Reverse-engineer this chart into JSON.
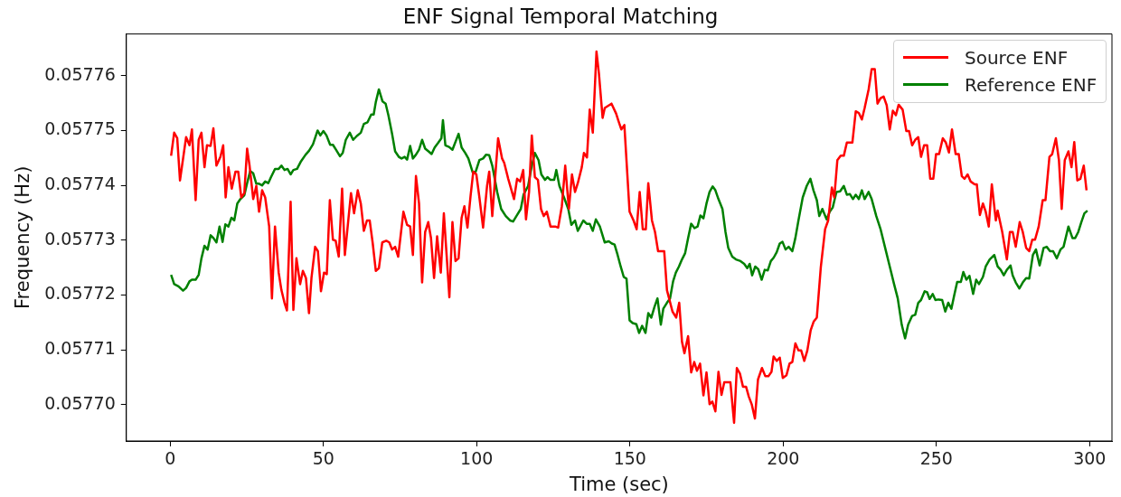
{
  "chart_data": {
    "type": "line",
    "title": "ENF Signal Temporal Matching",
    "xlabel": "Time (sec)",
    "ylabel": "Frequency (Hz)",
    "xlim": [
      -14.3,
      307.3
    ],
    "xticks": [
      0,
      50,
      100,
      150,
      200,
      250,
      300
    ],
    "ylim": [
      0.0576934,
      0.0577676
    ],
    "yticks": [
      {
        "value": 0.0577,
        "label": "0.05770"
      },
      0.05771,
      0.05772,
      0.05773,
      0.05774,
      0.05775,
      0.05776
    ],
    "legend": "top right",
    "marker": "none",
    "line_style": "solid",
    "grid": false,
    "series": [
      {
        "name": "Source ENF",
        "color": "#ff0000",
        "x": [
          0.3,
          1.3,
          2.3,
          3.2,
          5.2,
          6.3,
          7.1,
          8.3,
          9.3,
          10.2,
          11.2,
          12,
          13.2,
          14.1,
          15.1,
          16.4,
          17.3,
          18.1,
          19,
          20.1,
          21.3,
          22.2,
          23.2,
          24.2,
          25.1,
          25.9,
          27.1,
          28.1,
          29,
          30,
          31,
          32.3,
          33.2,
          34.2,
          35.4,
          36.3,
          37.3,
          38.1,
          39.3,
          40.2,
          41.2,
          42.4,
          43.3,
          44.3,
          45.3,
          46.1,
          47.3,
          48.2,
          49.2,
          50.2,
          51.1,
          52.1,
          53.1,
          54,
          55,
          56.1,
          57,
          59,
          60,
          61.2,
          62.2,
          63.2,
          64.2,
          65.1,
          66.1,
          67.1,
          68.1,
          69.2,
          70.5,
          71.5,
          72.4,
          73.4,
          74.4,
          76.1,
          77.3,
          78.3,
          79.2,
          80.2,
          81.2,
          82.2,
          83.2,
          84.2,
          85.1,
          86.1,
          87.1,
          88.3,
          89.3,
          90.2,
          91.1,
          92.1,
          93.1,
          94.1,
          95.1,
          96,
          97,
          98,
          98.9,
          99.9,
          100.9,
          102.1,
          103.4,
          104.1,
          105.1,
          107,
          108.3,
          109,
          110.3,
          112.2,
          113.2,
          114.2,
          115.2,
          116.1,
          117.1,
          118,
          119,
          120,
          121,
          121.9,
          122.9,
          124.1,
          125.6,
          126.6,
          127.8,
          128.9,
          130.1,
          131.1,
          132.1,
          133,
          134.3,
          135,
          136,
          136.9,
          137.9,
          139.1,
          139.9,
          141.1,
          141.8,
          144,
          145.5,
          146.3,
          147.2,
          148.2,
          149.9,
          151.2,
          152.2,
          153.2,
          154.2,
          155.2,
          156,
          157.2,
          158.2,
          159.2,
          161.2,
          162.1,
          163.9,
          165.1,
          166.1,
          167,
          167.8,
          169,
          170,
          171,
          171.9,
          172.9,
          174,
          175,
          176,
          176.9,
          177.9,
          178.9,
          179.9,
          180.8,
          181.8,
          182.8,
          184,
          184.9,
          185.9,
          186.9,
          187.9,
          188.8,
          189.8,
          190.8,
          191.8,
          193.1,
          194.2,
          195.2,
          196.2,
          196.9,
          197.9,
          198.9,
          199.9,
          201.1,
          202.1,
          203,
          204,
          205,
          205.9,
          206.9,
          207.9,
          209,
          210,
          211,
          212.3,
          213.7,
          214.7,
          215.9,
          216.7,
          217.7,
          218.8,
          219.8,
          220.8,
          222.6,
          223.7,
          224.7,
          225.7,
          226.6,
          227.9,
          228.9,
          229.9,
          230.8,
          231.8,
          232.8,
          233.8,
          234.8,
          235.8,
          236.8,
          237.7,
          239,
          240.2,
          241.1,
          242.1,
          243.1,
          244.1,
          245,
          246,
          247,
          248,
          249,
          249.9,
          250.9,
          252.1,
          253.1,
          254.1,
          255.1,
          256.3,
          257.3,
          258.3,
          259.2,
          260.2,
          261.2,
          262.5,
          263.2,
          264.2,
          265.2,
          266.1,
          267.1,
          268.1,
          269.4,
          270,
          271.5,
          273,
          274,
          274.9,
          275.9,
          277.2,
          278.2,
          279.3,
          280.3,
          281.3,
          282.2,
          283.4,
          284.7,
          285.6,
          286.9,
          287.8,
          289,
          290,
          290.9,
          291.9,
          293.1,
          294.1,
          295,
          296,
          297,
          298.1,
          299
        ],
        "values": [
          0.0577454,
          0.0577496,
          0.0577486,
          0.0577409,
          0.0577488,
          0.0577473,
          0.0577502,
          0.0577373,
          0.0577483,
          0.0577496,
          0.0577433,
          0.0577473,
          0.0577472,
          0.0577504,
          0.0577436,
          0.0577452,
          0.0577473,
          0.0577378,
          0.0577433,
          0.0577394,
          0.0577425,
          0.0577425,
          0.0577378,
          0.0577386,
          0.0577467,
          0.0577436,
          0.0577375,
          0.0577399,
          0.0577352,
          0.0577391,
          0.0577378,
          0.0577325,
          0.0577194,
          0.0577325,
          0.0577241,
          0.0577209,
          0.0577186,
          0.0577172,
          0.057737,
          0.0577173,
          0.0577267,
          0.057722,
          0.0577244,
          0.0577231,
          0.0577167,
          0.0577231,
          0.0577288,
          0.057728,
          0.0577207,
          0.0577241,
          0.0577238,
          0.0577373,
          0.0577301,
          0.0577299,
          0.057727,
          0.0577394,
          0.0577273,
          0.0577386,
          0.0577349,
          0.0577391,
          0.0577367,
          0.0577317,
          0.0577336,
          0.0577336,
          0.0577294,
          0.0577244,
          0.0577249,
          0.0577296,
          0.0577299,
          0.0577296,
          0.0577283,
          0.0577288,
          0.057727,
          0.0577352,
          0.0577328,
          0.0577325,
          0.0577273,
          0.0577417,
          0.0577367,
          0.0577223,
          0.0577315,
          0.0577333,
          0.0577304,
          0.0577231,
          0.0577307,
          0.0577241,
          0.0577349,
          0.0577273,
          0.0577196,
          0.0577333,
          0.0577262,
          0.0577267,
          0.0577341,
          0.0577362,
          0.0577323,
          0.057738,
          0.0577425,
          0.057742,
          0.0577378,
          0.0577323,
          0.0577399,
          0.0577425,
          0.0577344,
          0.0577486,
          0.0577449,
          0.0577441,
          0.0577412,
          0.0577375,
          0.0577412,
          0.0577407,
          0.0577428,
          0.0577338,
          0.0577388,
          0.0577491,
          0.0577415,
          0.057741,
          0.0577357,
          0.0577344,
          0.0577352,
          0.0577325,
          0.0577325,
          0.0577323,
          0.0577362,
          0.0577436,
          0.0577357,
          0.057742,
          0.0577388,
          0.0577404,
          0.0577433,
          0.0577459,
          0.0577451,
          0.0577538,
          0.0577496,
          0.0577644,
          0.0577604,
          0.0577523,
          0.0577541,
          0.0577549,
          0.0577531,
          0.0577517,
          0.0577502,
          0.057751,
          0.0577352,
          0.0577336,
          0.057732,
          0.0577388,
          0.057732,
          0.057732,
          0.0577404,
          0.0577336,
          0.0577315,
          0.057728,
          0.057728,
          0.0577209,
          0.057717,
          0.0577159,
          0.0577186,
          0.0577115,
          0.0577094,
          0.0577125,
          0.0577059,
          0.0577078,
          0.0577062,
          0.0577075,
          0.0577017,
          0.0577059,
          0.0577001,
          0.0577006,
          0.0576988,
          0.057706,
          0.0577018,
          0.0577041,
          0.0577041,
          0.0577041,
          0.0576967,
          0.0577067,
          0.0577057,
          0.0577033,
          0.0577033,
          0.0577015,
          0.0577,
          0.0576975,
          0.0577046,
          0.0577067,
          0.0577052,
          0.0577052,
          0.057706,
          0.0577088,
          0.057708,
          0.0577086,
          0.0577049,
          0.0577054,
          0.0577075,
          0.0577078,
          0.0577112,
          0.0577099,
          0.0577099,
          0.057708,
          0.0577099,
          0.0577136,
          0.0577152,
          0.0577159,
          0.0577251,
          0.057732,
          0.0577336,
          0.0577396,
          0.0577378,
          0.0577446,
          0.0577454,
          0.0577454,
          0.0577478,
          0.0577478,
          0.0577535,
          0.0577532,
          0.057752,
          0.0577541,
          0.0577575,
          0.0577612,
          0.0577612,
          0.0577549,
          0.0577559,
          0.0577562,
          0.0577546,
          0.0577502,
          0.0577536,
          0.0577528,
          0.0577547,
          0.0577538,
          0.0577499,
          0.0577499,
          0.0577473,
          0.0577483,
          0.0577488,
          0.0577452,
          0.0577473,
          0.0577473,
          0.0577412,
          0.0577412,
          0.0577457,
          0.0577457,
          0.0577486,
          0.0577478,
          0.057746,
          0.0577502,
          0.0577457,
          0.0577457,
          0.0577417,
          0.0577412,
          0.057742,
          0.0577407,
          0.0577402,
          0.0577402,
          0.0577346,
          0.0577367,
          0.0577352,
          0.0577325,
          0.0577402,
          0.0577336,
          0.0577354,
          0.0577315,
          0.0577265,
          0.0577315,
          0.0577315,
          0.0577288,
          0.0577333,
          0.0577315,
          0.0577286,
          0.057728,
          0.0577301,
          0.0577301,
          0.0577325,
          0.0577373,
          0.0577373,
          0.0577452,
          0.0577457,
          0.0577486,
          0.0577446,
          0.0577357,
          0.0577446,
          0.0577462,
          0.0577433,
          0.0577479,
          0.0577409,
          0.0577412,
          0.0577436,
          0.0577391
        ]
      },
      {
        "name": "Reference ENF",
        "color": "#008000",
        "x": [
          0.3,
          1.3,
          2.7,
          4.2,
          5.2,
          6.3,
          7.1,
          8.3,
          9.3,
          10.2,
          11.2,
          12.2,
          13.2,
          14.1,
          15.1,
          16.1,
          17.1,
          18,
          19,
          20,
          20.9,
          21.9,
          22.9,
          24.2,
          25.1,
          26.1,
          27.1,
          28.1,
          29,
          30,
          31,
          32,
          32.9,
          34.2,
          35.4,
          36.3,
          37.3,
          38.3,
          39.3,
          40.2,
          41.4,
          42.7,
          44.2,
          45.3,
          46.6,
          48.1,
          49,
          50,
          51,
          52.2,
          53.1,
          54.1,
          55.4,
          56.3,
          57.3,
          58.6,
          59.7,
          60.9,
          62.2,
          63.2,
          64.4,
          65.6,
          66.4,
          67.1,
          68.1,
          69.3,
          70.3,
          71.2,
          72.4,
          73.4,
          74.6,
          75.5,
          76.5,
          77.3,
          78.3,
          79.2,
          80.2,
          81.2,
          82.2,
          83.2,
          84.3,
          85.3,
          86.3,
          87.5,
          88.5,
          89,
          89.8,
          91,
          92.1,
          94.1,
          95.1,
          96.3,
          97.3,
          98.7,
          99.7,
          100.9,
          102.1,
          103.1,
          104.1,
          105.1,
          106.7,
          108,
          109.5,
          110.9,
          111.9,
          113.2,
          114.4,
          115.3,
          116.8,
          118,
          119,
          120.2,
          121.1,
          122.3,
          123.1,
          124.1,
          125.3,
          126,
          127,
          128.5,
          129.9,
          130.9,
          132.1,
          133,
          134.8,
          135.9,
          136.9,
          137.9,
          138.9,
          140.2,
          141.8,
          143.1,
          144.1,
          145,
          146,
          147,
          148,
          148.9,
          149.9,
          150.9,
          152.1,
          153,
          154,
          155.1,
          156,
          157,
          158,
          159,
          160.1,
          160.9,
          162.1,
          163.1,
          164.1,
          165,
          166,
          167,
          168,
          169,
          170,
          171.1,
          172.1,
          173,
          174,
          175,
          176,
          177,
          177.9,
          178.9,
          180.2,
          181.2,
          182.1,
          183.4,
          184.6,
          186.1,
          187.3,
          188.3,
          189.1,
          189.9,
          190.9,
          191.9,
          193,
          194,
          195,
          196,
          196.9,
          197.9,
          198.9,
          199.8,
          200.8,
          201.8,
          203,
          204,
          205,
          206.4,
          207.7,
          208.9,
          209.9,
          211,
          211.8,
          212.8,
          214.2,
          215.2,
          216.2,
          217.4,
          218.6,
          219.8,
          220.8,
          221.8,
          222.8,
          223.7,
          224.7,
          225.7,
          226.6,
          227.9,
          228.9,
          230.4,
          231.8,
          233.3,
          234.8,
          236.2,
          237.4,
          238.7,
          239.8,
          240.8,
          242.1,
          243.1,
          244.1,
          245,
          246.2,
          247,
          247.8,
          248.8,
          249.7,
          250.7,
          251.9,
          252.9,
          253.9,
          254.9,
          255.8,
          256.8,
          258,
          258.8,
          259.8,
          260.8,
          262,
          263,
          263.9,
          265.2,
          266.1,
          267.4,
          268.9,
          270,
          271,
          272,
          273,
          274.2,
          274.9,
          275.9,
          277.1,
          278.2,
          279.3,
          280.3,
          281.5,
          282.5,
          283.7,
          285,
          286,
          287.1,
          288.1,
          289.3,
          290.5,
          291.5,
          293.1,
          294.4,
          295.3,
          296.3,
          297.3,
          298.3,
          299.3
        ],
        "values": [
          0.0577237,
          0.057722,
          0.0577216,
          0.0577208,
          0.0577213,
          0.0577225,
          0.0577228,
          0.0577228,
          0.0577237,
          0.0577267,
          0.057729,
          0.0577283,
          0.0577309,
          0.0577304,
          0.0577296,
          0.0577325,
          0.0577297,
          0.0577329,
          0.0577325,
          0.0577341,
          0.0577336,
          0.0577367,
          0.0577375,
          0.0577382,
          0.0577404,
          0.0577426,
          0.0577422,
          0.0577403,
          0.0577403,
          0.05774,
          0.0577407,
          0.0577404,
          0.0577415,
          0.057743,
          0.057743,
          0.0577436,
          0.0577428,
          0.057743,
          0.057742,
          0.0577428,
          0.057743,
          0.0577444,
          0.0577456,
          0.0577463,
          0.0577475,
          0.05775,
          0.0577491,
          0.0577499,
          0.0577491,
          0.0577474,
          0.0577474,
          0.0577465,
          0.0577453,
          0.0577459,
          0.0577483,
          0.0577496,
          0.0577483,
          0.057749,
          0.0577496,
          0.0577512,
          0.0577515,
          0.0577529,
          0.0577529,
          0.0577552,
          0.0577575,
          0.0577553,
          0.0577549,
          0.0577528,
          0.0577494,
          0.0577462,
          0.0577452,
          0.0577449,
          0.0577452,
          0.0577447,
          0.0577472,
          0.0577449,
          0.0577456,
          0.0577465,
          0.0577483,
          0.0577467,
          0.0577462,
          0.0577457,
          0.0577469,
          0.0577478,
          0.0577486,
          0.0577519,
          0.0577473,
          0.057747,
          0.0577465,
          0.0577494,
          0.0577469,
          0.0577459,
          0.0577449,
          0.0577424,
          0.0577425,
          0.0577446,
          0.0577449,
          0.0577456,
          0.0577455,
          0.0577436,
          0.0577388,
          0.0577357,
          0.0577344,
          0.0577336,
          0.0577334,
          0.0577346,
          0.0577357,
          0.0577383,
          0.0577399,
          0.0577436,
          0.0577459,
          0.0577446,
          0.057742,
          0.057741,
          0.0577415,
          0.057741,
          0.057741,
          0.0577428,
          0.0577399,
          0.0577378,
          0.0577357,
          0.0577328,
          0.0577336,
          0.0577317,
          0.0577336,
          0.057733,
          0.057733,
          0.0577317,
          0.0577338,
          0.0577325,
          0.0577296,
          0.0577298,
          0.0577294,
          0.0577292,
          0.0577273,
          0.0577252,
          0.0577233,
          0.057723,
          0.0577154,
          0.0577149,
          0.0577147,
          0.0577131,
          0.0577144,
          0.0577131,
          0.0577167,
          0.0577159,
          0.0577178,
          0.0577194,
          0.0577146,
          0.0577175,
          0.0577186,
          0.0577194,
          0.0577225,
          0.0577241,
          0.0577252,
          0.0577265,
          0.0577276,
          0.0577304,
          0.057733,
          0.0577322,
          0.0577325,
          0.0577345,
          0.057734,
          0.0577367,
          0.0577388,
          0.0577398,
          0.0577391,
          0.0577375,
          0.0577357,
          0.0577315,
          0.0577286,
          0.057727,
          0.0577265,
          0.0577262,
          0.0577257,
          0.0577249,
          0.0577257,
          0.0577236,
          0.0577252,
          0.0577247,
          0.0577228,
          0.0577246,
          0.0577245,
          0.0577262,
          0.0577268,
          0.0577278,
          0.0577294,
          0.0577297,
          0.0577283,
          0.0577288,
          0.057728,
          0.0577304,
          0.0577336,
          0.0577378,
          0.0577399,
          0.0577412,
          0.0577391,
          0.0577373,
          0.0577344,
          0.0577357,
          0.0577338,
          0.0577352,
          0.057736,
          0.0577388,
          0.0577389,
          0.0577399,
          0.0577383,
          0.0577384,
          0.0577375,
          0.0577383,
          0.0577375,
          0.0577391,
          0.0577375,
          0.0577388,
          0.0577375,
          0.0577344,
          0.057732,
          0.0577286,
          0.0577252,
          0.057722,
          0.0577194,
          0.0577146,
          0.0577121,
          0.0577146,
          0.0577162,
          0.0577164,
          0.0577186,
          0.0577191,
          0.0577207,
          0.0577205,
          0.0577193,
          0.0577202,
          0.0577191,
          0.0577192,
          0.0577191,
          0.057717,
          0.0577186,
          0.0577175,
          0.0577199,
          0.0577224,
          0.0577224,
          0.0577242,
          0.0577228,
          0.0577235,
          0.0577202,
          0.0577228,
          0.057722,
          0.0577233,
          0.0577252,
          0.0577265,
          0.0577273,
          0.0577252,
          0.0577246,
          0.0577236,
          0.0577246,
          0.0577254,
          0.0577236,
          0.0577223,
          0.0577212,
          0.0577223,
          0.0577231,
          0.057723,
          0.0577273,
          0.0577283,
          0.0577254,
          0.0577286,
          0.0577288,
          0.057728,
          0.057728,
          0.0577267,
          0.0577283,
          0.0577288,
          0.0577325,
          0.0577304,
          0.0577304,
          0.0577315,
          0.0577333,
          0.0577349,
          0.0577354
        ]
      }
    ]
  }
}
